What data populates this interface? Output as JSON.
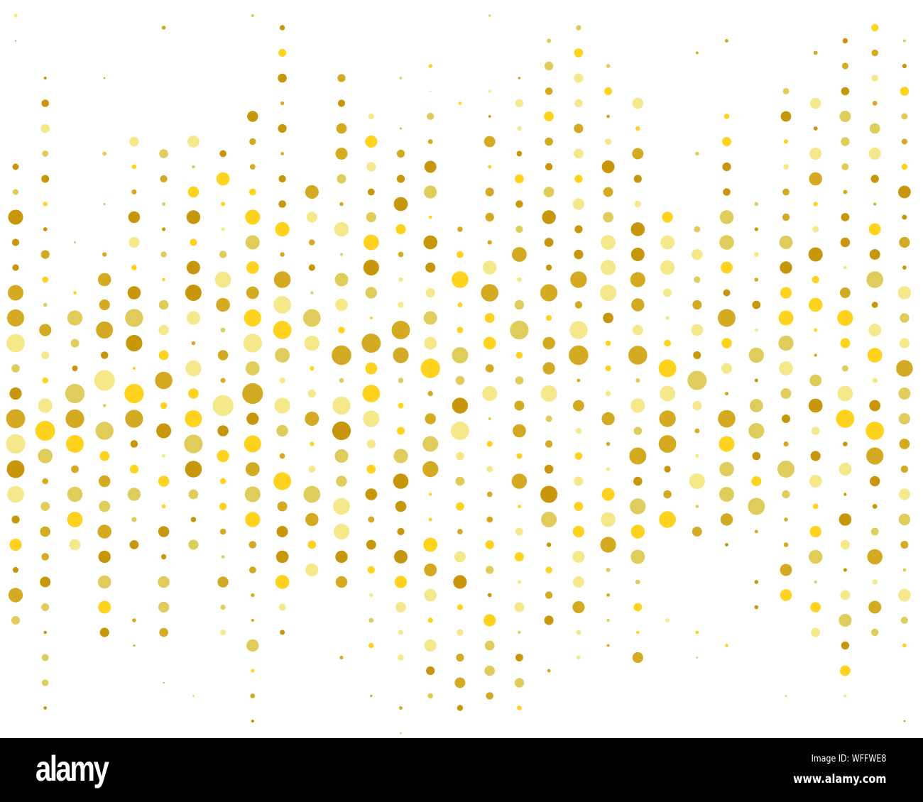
{
  "palette": [
    "#c8960a",
    "#d4aa22",
    "#ffd21e",
    "#e0cc5a",
    "#f5e88a"
  ],
  "watermark": {
    "logo": "alamy",
    "image_id": "Image ID: WFFWE8",
    "url": "www.alamy.com"
  }
}
